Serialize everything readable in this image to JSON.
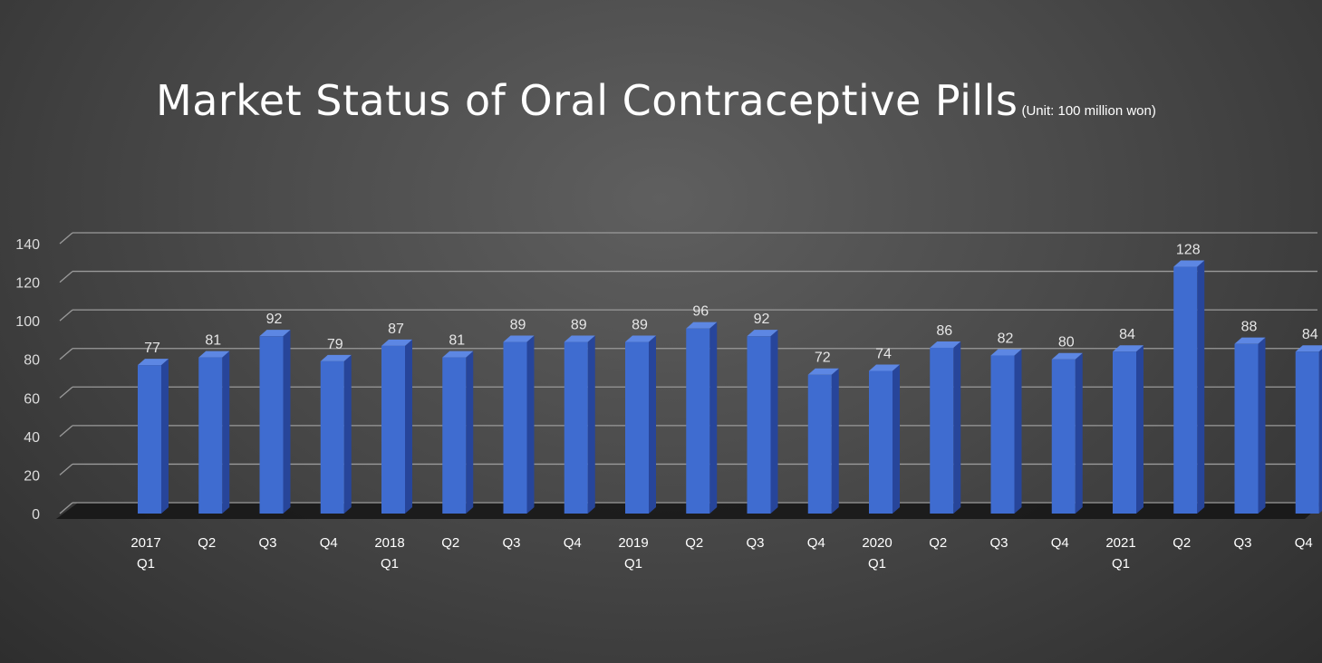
{
  "chart_data": {
    "type": "bar",
    "title": "Market Status of Oral Contraceptive Pills",
    "subtitle": "(Unit: 100 million won)",
    "categories": [
      [
        "2017",
        "Q1"
      ],
      [
        "Q2"
      ],
      [
        "Q3"
      ],
      [
        "Q4"
      ],
      [
        "2018",
        "Q1"
      ],
      [
        "Q2"
      ],
      [
        "Q3"
      ],
      [
        "Q4"
      ],
      [
        "2019",
        "Q1"
      ],
      [
        "Q2"
      ],
      [
        "Q3"
      ],
      [
        "Q4"
      ],
      [
        "2020",
        "Q1"
      ],
      [
        "Q2"
      ],
      [
        "Q3"
      ],
      [
        "Q4"
      ],
      [
        "2021",
        "Q1"
      ],
      [
        "Q2"
      ],
      [
        "Q3"
      ],
      [
        "Q4"
      ]
    ],
    "values": [
      77,
      81,
      92,
      79,
      87,
      81,
      89,
      89,
      89,
      96,
      92,
      72,
      74,
      86,
      82,
      80,
      84,
      128,
      88,
      84
    ],
    "ylim": [
      0,
      140
    ],
    "yticks": [
      0,
      20,
      40,
      60,
      80,
      100,
      120,
      140
    ],
    "xlabel": "",
    "ylabel": "",
    "grid": true,
    "legend": "none",
    "colors": {
      "bar_front": "#3f6cd0",
      "bar_side": "#27459a",
      "bar_top": "#5d87e3",
      "grid": "#9a9a9a",
      "floor": "#151515"
    }
  }
}
